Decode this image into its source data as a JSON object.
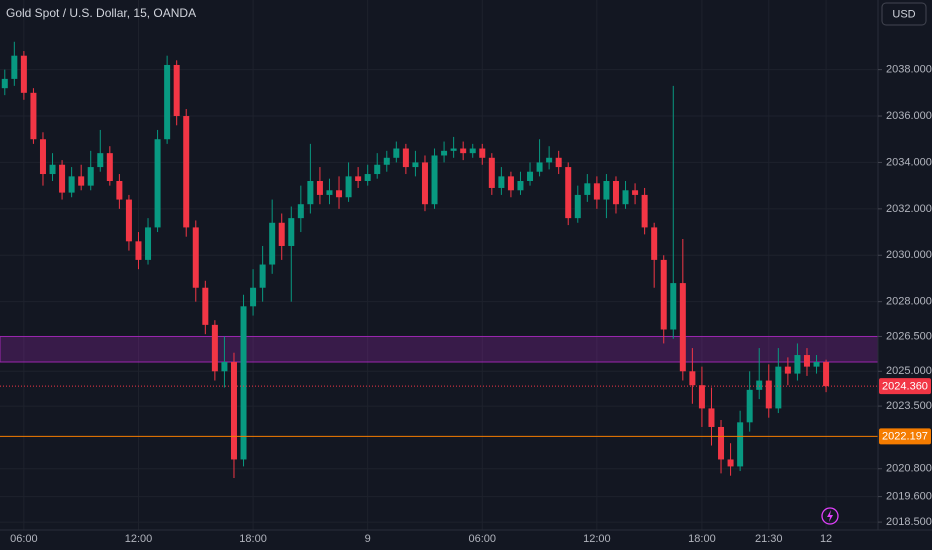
{
  "chart_data": {
    "type": "candlestick",
    "title": "Gold Spot / U.S. Dollar, 15, OANDA",
    "currency": "USD",
    "categories": [
      null,
      null,
      "06:00",
      null,
      null,
      null,
      null,
      null,
      null,
      null,
      null,
      null,
      null,
      null,
      "12:00",
      null,
      null,
      null,
      null,
      null,
      null,
      null,
      null,
      null,
      null,
      null,
      "18:00",
      null,
      null,
      null,
      null,
      null,
      null,
      null,
      null,
      null,
      null,
      null,
      "9",
      null,
      null,
      null,
      null,
      null,
      null,
      null,
      null,
      null,
      null,
      null,
      "06:00",
      null,
      null,
      null,
      null,
      null,
      null,
      null,
      null,
      null,
      null,
      null,
      "12:00",
      null,
      null,
      null,
      null,
      null,
      null,
      null,
      null,
      null,
      null,
      "18:00",
      null,
      null,
      null,
      null,
      null,
      null,
      "21:30",
      null,
      null,
      null,
      null,
      null,
      "12"
    ],
    "open": [
      2037.2,
      2037.6,
      2038.6,
      2037.0,
      2035.0,
      2033.5,
      2033.9,
      2032.7,
      2033.4,
      2033.0,
      2033.8,
      2034.4,
      2033.2,
      2032.4,
      2030.6,
      2029.8,
      2031.2,
      2035.0,
      2038.2,
      2036.0,
      2031.2,
      2028.6,
      2027.0,
      2025.0,
      2025.4,
      2021.2,
      2027.8,
      2028.6,
      2029.6,
      2031.4,
      2030.4,
      2031.6,
      2032.2,
      2033.2,
      2032.6,
      2032.8,
      2032.5,
      2033.4,
      2033.2,
      2033.5,
      2033.9,
      2034.2,
      2034.6,
      2033.8,
      2034.0,
      2032.2,
      2034.3,
      2034.5,
      2034.6,
      2034.4,
      2034.6,
      2034.2,
      2032.9,
      2033.4,
      2032.8,
      2033.2,
      2033.6,
      2034.0,
      2034.2,
      2033.8,
      2031.6,
      2032.6,
      2033.1,
      2032.4,
      2033.2,
      2032.2,
      2032.8,
      2032.6,
      2031.2,
      2029.8,
      2026.8,
      2028.8,
      2025.0,
      2024.4,
      2023.4,
      2022.6,
      2021.2,
      2020.9,
      2022.8,
      2024.2,
      2024.6,
      2023.4,
      2025.2,
      2024.9,
      2025.7,
      2025.2,
      2025.4
    ],
    "high": [
      2038.0,
      2039.2,
      2038.8,
      2037.2,
      2035.3,
      2034.4,
      2034.1,
      2033.8,
      2033.9,
      2034.5,
      2035.4,
      2034.7,
      2033.5,
      2032.6,
      2031.0,
      2031.6,
      2035.4,
      2038.6,
      2038.4,
      2036.3,
      2031.5,
      2028.9,
      2027.2,
      2026.5,
      2025.8,
      2028.3,
      2029.4,
      2030.4,
      2032.4,
      2031.8,
      2032.1,
      2033.0,
      2034.8,
      2033.8,
      2033.3,
      2033.4,
      2034.0,
      2033.8,
      2033.9,
      2034.4,
      2034.5,
      2034.9,
      2034.8,
      2034.5,
      2034.3,
      2034.6,
      2034.9,
      2035.1,
      2034.9,
      2034.8,
      2034.8,
      2034.4,
      2033.8,
      2033.6,
      2033.6,
      2034.0,
      2035.0,
      2034.7,
      2034.5,
      2034.0,
      2033.0,
      2033.5,
      2033.4,
      2033.5,
      2033.4,
      2033.2,
      2033.1,
      2032.9,
      2031.4,
      2030.0,
      2037.3,
      2030.7,
      2026.0,
      2025.2,
      2024.3,
      2022.9,
      2021.9,
      2023.3,
      2025.0,
      2026.0,
      2025.3,
      2026.0,
      2025.6,
      2026.2,
      2026.0,
      2025.7,
      2025.5
    ],
    "low": [
      2036.9,
      2037.3,
      2036.7,
      2034.8,
      2033.0,
      2033.2,
      2032.4,
      2032.5,
      2032.8,
      2032.8,
      2033.6,
      2033.0,
      2032.0,
      2030.2,
      2029.4,
      2029.6,
      2031.0,
      2034.8,
      2035.6,
      2030.8,
      2028.0,
      2026.6,
      2024.6,
      2024.3,
      2020.4,
      2020.9,
      2027.4,
      2028.0,
      2029.2,
      2029.8,
      2028.0,
      2031.0,
      2031.8,
      2032.2,
      2032.2,
      2032.0,
      2032.3,
      2032.9,
      2033.0,
      2033.3,
      2033.6,
      2034.0,
      2033.5,
      2033.4,
      2031.9,
      2032.0,
      2034.0,
      2034.2,
      2034.1,
      2034.2,
      2033.9,
      2032.6,
      2032.6,
      2032.5,
      2032.6,
      2033.0,
      2033.4,
      2033.7,
      2033.5,
      2031.3,
      2031.4,
      2032.3,
      2032.0,
      2031.6,
      2031.8,
      2032.0,
      2032.2,
      2030.9,
      2028.6,
      2026.2,
      2026.4,
      2024.6,
      2023.6,
      2022.6,
      2021.8,
      2020.6,
      2020.5,
      2020.7,
      2022.4,
      2023.8,
      2023.0,
      2023.2,
      2024.4,
      2024.6,
      2024.8,
      2024.9,
      2024.1
    ],
    "close": [
      2037.6,
      2038.6,
      2037.0,
      2035.0,
      2033.5,
      2033.9,
      2032.7,
      2033.4,
      2033.0,
      2033.8,
      2034.4,
      2033.2,
      2032.4,
      2030.6,
      2029.8,
      2031.2,
      2035.0,
      2038.2,
      2036.0,
      2031.2,
      2028.6,
      2027.0,
      2025.0,
      2025.4,
      2021.2,
      2027.8,
      2028.6,
      2029.6,
      2031.4,
      2030.4,
      2031.6,
      2032.2,
      2033.2,
      2032.6,
      2032.8,
      2032.5,
      2033.4,
      2033.2,
      2033.5,
      2033.9,
      2034.2,
      2034.6,
      2033.8,
      2034.0,
      2032.2,
      2034.3,
      2034.5,
      2034.6,
      2034.4,
      2034.6,
      2034.2,
      2032.9,
      2033.4,
      2032.8,
      2033.2,
      2033.6,
      2034.0,
      2034.2,
      2033.8,
      2031.6,
      2032.6,
      2033.1,
      2032.4,
      2033.2,
      2032.2,
      2032.8,
      2032.6,
      2031.2,
      2029.8,
      2026.8,
      2028.8,
      2025.0,
      2024.4,
      2023.4,
      2022.6,
      2021.2,
      2020.9,
      2022.8,
      2024.2,
      2024.6,
      2023.4,
      2025.2,
      2024.9,
      2025.7,
      2025.2,
      2025.4,
      2024.36
    ],
    "up_color": "#089981",
    "down_color": "#f23645",
    "ylim": [
      2018.16,
      2041.0
    ],
    "yticks": [
      {
        "value": 2038,
        "label": "2038.000"
      },
      {
        "value": 2036,
        "label": "2036.000"
      },
      {
        "value": 2034,
        "label": "2034.000"
      },
      {
        "value": 2032,
        "label": "2032.000"
      },
      {
        "value": 2030,
        "label": "2030.000"
      },
      {
        "value": 2028,
        "label": "2028.000"
      },
      {
        "value": 2026.5,
        "label": "2026.500"
      },
      {
        "value": 2025,
        "label": "2025.000"
      },
      {
        "value": 2023.5,
        "label": "2023.500"
      },
      {
        "value": 2020.8,
        "label": "2020.800"
      },
      {
        "value": 2019.6,
        "label": "2019.600"
      },
      {
        "value": 2018.5,
        "label": "2018.500"
      }
    ],
    "zone": {
      "low": 2025.4,
      "high": 2026.5,
      "color": "#9c27b0"
    },
    "price_lines": [
      {
        "value": 2024.36,
        "label": "2024.360",
        "color": "#f23645"
      },
      {
        "value": 2022.197,
        "label": "2022.197",
        "color": "#f57c00"
      }
    ],
    "grid": true
  }
}
